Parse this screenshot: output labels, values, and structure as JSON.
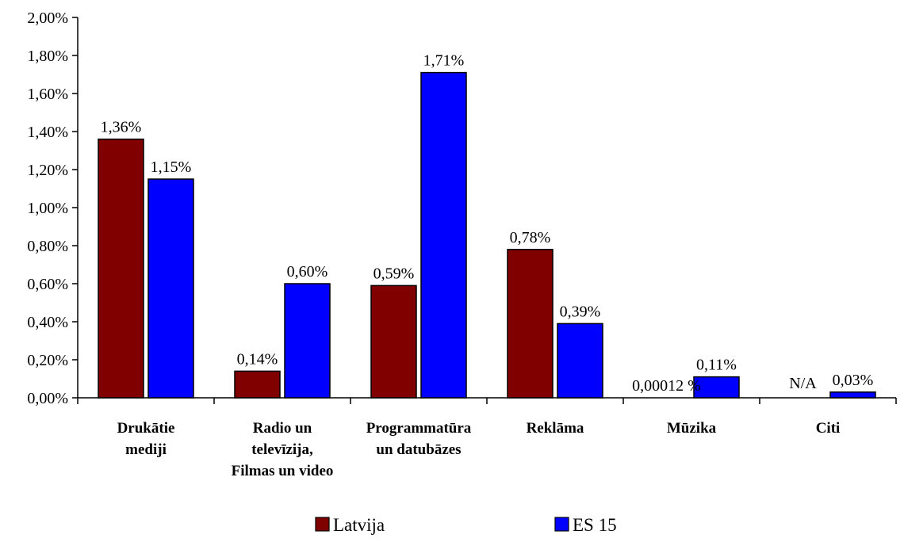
{
  "chart_data": {
    "type": "bar",
    "categories": [
      [
        "Drukātie",
        "mediji"
      ],
      [
        "Radio un",
        "televīzija,",
        "Filmas un video"
      ],
      [
        "Programmatūra",
        "un datubāzes"
      ],
      [
        "Reklāma"
      ],
      [
        "Mūzika"
      ],
      [
        "Citi"
      ]
    ],
    "series": [
      {
        "name": "Latvija",
        "color": "#800000",
        "values": [
          1.36,
          0.14,
          0.59,
          0.78,
          0.00012,
          null
        ],
        "labels": [
          "1,36%",
          "0,14%",
          "0,59%",
          "0,78%",
          "0,00012 %",
          "N/A"
        ]
      },
      {
        "name": "ES 15",
        "color": "#0000ff",
        "values": [
          1.15,
          0.6,
          1.71,
          0.39,
          0.11,
          0.03
        ],
        "labels": [
          "1,15%",
          "0,60%",
          "1,71%",
          "0,39%",
          "0,11%",
          "0,03%"
        ]
      }
    ],
    "ylim": [
      0,
      2
    ],
    "yticks": [
      0,
      0.2,
      0.4,
      0.6,
      0.8,
      1.0,
      1.2,
      1.4,
      1.6,
      1.8,
      2.0
    ],
    "ytick_labels": [
      "0,00%",
      "0,20%",
      "0,40%",
      "0,60%",
      "0,80%",
      "1,00%",
      "1,20%",
      "1,40%",
      "1,60%",
      "1,80%",
      "2,00%"
    ],
    "title": "",
    "xlabel": "",
    "ylabel": "",
    "grid": false,
    "legend_position": "bottom"
  }
}
